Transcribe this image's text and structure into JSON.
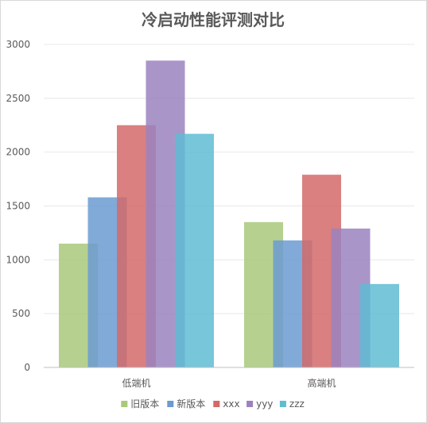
{
  "chart_data": {
    "type": "bar",
    "title": "冷启动性能评测对比",
    "categories": [
      "低端机",
      "高端机"
    ],
    "series": [
      {
        "name": "旧版本",
        "values": [
          1150,
          1350
        ],
        "color": "#a9c97b"
      },
      {
        "name": "新版本",
        "values": [
          1580,
          1180
        ],
        "color": "#6b9bd1"
      },
      {
        "name": "xxx",
        "values": [
          2250,
          1790
        ],
        "color": "#d46a6a"
      },
      {
        "name": "yyy",
        "values": [
          2850,
          1290
        ],
        "color": "#9b82bf"
      },
      {
        "name": "zzz",
        "values": [
          2170,
          775
        ],
        "color": "#5fbcd3"
      }
    ],
    "yticks": [
      "0",
      "500",
      "1000",
      "1500",
      "2000",
      "2500",
      "3000"
    ],
    "ylim": [
      0,
      3000
    ],
    "xlabel": "",
    "ylabel": "",
    "legend_position": "bottom",
    "grid": true
  }
}
